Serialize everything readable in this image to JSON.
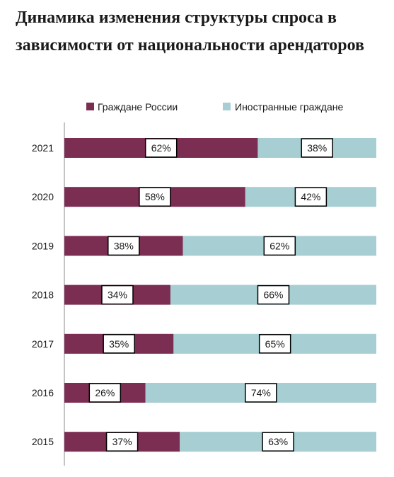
{
  "title_lines": [
    "Динамика изменения структуры спроса в",
    "зависимости от национальности арендаторов"
  ],
  "colors": {
    "russia": "#7b2d52",
    "foreign": "#a6ced3",
    "axis": "#888888",
    "text": "#1a1a1a"
  },
  "chart_data": {
    "type": "bar",
    "orientation": "horizontal",
    "stacked": true,
    "stack_mode": "percent",
    "categories": [
      "2021",
      "2020",
      "2019",
      "2018",
      "2017",
      "2016",
      "2015"
    ],
    "series": [
      {
        "name": "Граждане России",
        "values": [
          62,
          58,
          38,
          34,
          35,
          26,
          37
        ],
        "labels": [
          "62%",
          "58%",
          "38%",
          "34%",
          "35%",
          "26%",
          "37%"
        ]
      },
      {
        "name": "Иностранные граждане",
        "values": [
          38,
          42,
          62,
          66,
          65,
          74,
          63
        ],
        "labels": [
          "38%",
          "42%",
          "62%",
          "66%",
          "65%",
          "74%",
          "63%"
        ]
      }
    ],
    "xlim": [
      0,
      100
    ],
    "grid": false,
    "legend": "top"
  }
}
